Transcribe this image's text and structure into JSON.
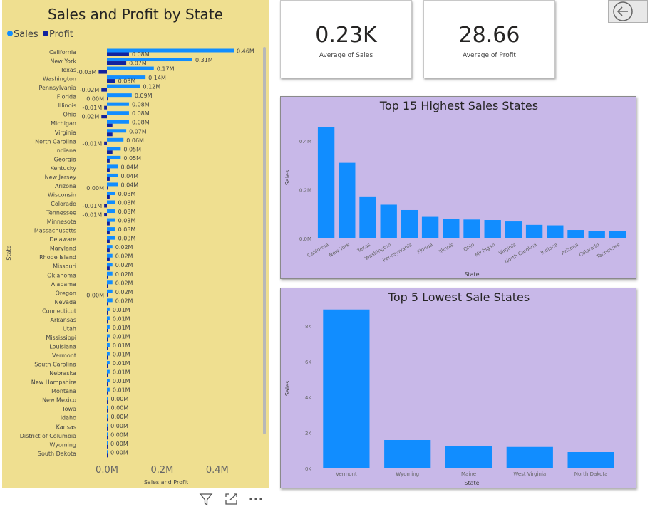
{
  "cards": {
    "sales": {
      "value": "0.23K",
      "caption": "Average of Sales"
    },
    "profit": {
      "value": "28.66",
      "caption": "Average of Profit"
    }
  },
  "colors": {
    "sales": "#118dff",
    "profit": "#12239e",
    "panel": "#efdf90",
    "purple": "#c8b8e8"
  },
  "icons": {
    "back": "back-arrow-icon",
    "filter": "filter-icon",
    "focus": "focus-mode-icon",
    "more": "more-options-icon"
  },
  "chart_data": [
    {
      "type": "bar",
      "orientation": "horizontal",
      "title": "Sales and Profit by State",
      "xlabel": "Sales and Profit",
      "ylabel": "State",
      "legend": {
        "placement": "top-left",
        "entries": [
          "Sales",
          "Profit"
        ]
      },
      "xlim": [
        -0.05,
        0.5
      ],
      "xticks": [
        "0.0M",
        "0.2M",
        "0.4M"
      ],
      "xtick_values": [
        0,
        0.2,
        0.4
      ],
      "categories": [
        "California",
        "New York",
        "Texas",
        "Washington",
        "Pennsylvania",
        "Florida",
        "Illinois",
        "Ohio",
        "Michigan",
        "Virginia",
        "North Carolina",
        "Indiana",
        "Georgia",
        "Kentucky",
        "New Jersey",
        "Arizona",
        "Wisconsin",
        "Colorado",
        "Tennessee",
        "Minnesota",
        "Massachusetts",
        "Delaware",
        "Maryland",
        "Rhode Island",
        "Missouri",
        "Oklahoma",
        "Alabama",
        "Oregon",
        "Nevada",
        "Connecticut",
        "Arkansas",
        "Utah",
        "Mississippi",
        "Louisiana",
        "Vermont",
        "South Carolina",
        "Nebraska",
        "New Hampshire",
        "Montana",
        "New Mexico",
        "Iowa",
        "Idaho",
        "Kansas",
        "District of Columbia",
        "Wyoming",
        "South Dakota"
      ],
      "series": [
        {
          "name": "Sales",
          "values": [
            0.46,
            0.31,
            0.17,
            0.14,
            0.12,
            0.09,
            0.08,
            0.08,
            0.08,
            0.07,
            0.06,
            0.05,
            0.05,
            0.04,
            0.04,
            0.04,
            0.03,
            0.03,
            0.03,
            0.03,
            0.03,
            0.03,
            0.02,
            0.02,
            0.02,
            0.02,
            0.02,
            0.02,
            0.02,
            0.01,
            0.01,
            0.01,
            0.01,
            0.01,
            0.01,
            0.01,
            0.01,
            0.01,
            0.01,
            0.004,
            0.004,
            0.004,
            0.003,
            0.003,
            0.002,
            0.001
          ],
          "labels": [
            "0.46M",
            "0.31M",
            "0.17M",
            "0.14M",
            "0.12M",
            "0.09M",
            "0.08M",
            "0.08M",
            "0.08M",
            "0.07M",
            "0.06M",
            "0.05M",
            "0.05M",
            "0.04M",
            "0.04M",
            "0.04M",
            "0.03M",
            "0.03M",
            "0.03M",
            "0.03M",
            "0.03M",
            "0.03M",
            "0.02M",
            "0.02M",
            "0.02M",
            "0.02M",
            "0.02M",
            "0.02M",
            "0.02M",
            "0.01M",
            "0.01M",
            "0.01M",
            "0.01M",
            "0.01M",
            "0.01M",
            "0.01M",
            "0.01M",
            "0.01M",
            "0.01M",
            "0.00M",
            "0.00M",
            "0.00M",
            "0.00M",
            "0.00M",
            "0.00M",
            "0.00M"
          ]
        },
        {
          "name": "Profit",
          "values": [
            0.08,
            0.07,
            -0.03,
            0.03,
            -0.02,
            0.0,
            -0.01,
            -0.02,
            0.02,
            0.02,
            -0.01,
            0.02,
            0.01,
            0.01,
            0.01,
            0.0,
            0.01,
            -0.01,
            -0.01,
            0.01,
            0.01,
            0.01,
            0.01,
            0.01,
            0.01,
            0.005,
            0.005,
            0.0,
            0.005,
            0.004,
            0.004,
            0.003,
            0.003,
            0.003,
            0.003,
            0.002,
            0.002,
            0.002,
            0.002,
            0.001,
            0.001,
            0.001,
            0.001,
            0.001,
            0.001,
            0.001
          ],
          "labels": [
            "0.08M",
            "0.07M",
            "-0.03M",
            "0.03M",
            "-0.02M",
            "0.00M",
            "-0.01M",
            "-0.02M",
            "",
            "",
            "-0.01M",
            "",
            "",
            "",
            "",
            "0.00M",
            "",
            "-0.01M",
            "-0.01M",
            "",
            "",
            "",
            "",
            "",
            "",
            "",
            "",
            "0.00M",
            "",
            "",
            "",
            "",
            "",
            "",
            "",
            "",
            "",
            "",
            "",
            "",
            "",
            "",
            "",
            "",
            "",
            ""
          ]
        }
      ]
    },
    {
      "type": "bar",
      "title": "Top 15 Highest Sales States",
      "xlabel": "State",
      "ylabel": "Sales",
      "ylim": [
        0,
        0.5
      ],
      "yticks": [
        "0.0M",
        "0.2M",
        "0.4M"
      ],
      "ytick_values": [
        0,
        0.2,
        0.4
      ],
      "categories": [
        "California",
        "New York",
        "Texas",
        "Washington",
        "Pennsylvania",
        "Florida",
        "Illinois",
        "Ohio",
        "Michigan",
        "Virginia",
        "North Carolina",
        "Indiana",
        "Arizona",
        "Colorado",
        "Tennessee"
      ],
      "values": [
        0.457,
        0.311,
        0.17,
        0.139,
        0.117,
        0.089,
        0.081,
        0.078,
        0.076,
        0.07,
        0.056,
        0.054,
        0.035,
        0.032,
        0.03
      ]
    },
    {
      "type": "bar",
      "title": "Top 5 Lowest Sale States",
      "xlabel": "State",
      "ylabel": "Sales",
      "ylim": [
        0,
        9000
      ],
      "yticks": [
        "0K",
        "2K",
        "4K",
        "6K",
        "8K"
      ],
      "ytick_values": [
        0,
        2000,
        4000,
        6000,
        8000
      ],
      "categories": [
        "Vermont",
        "Wyoming",
        "Maine",
        "West Virginia",
        "North Dakota"
      ],
      "values": [
        8930,
        1600,
        1270,
        1210,
        920
      ]
    }
  ]
}
